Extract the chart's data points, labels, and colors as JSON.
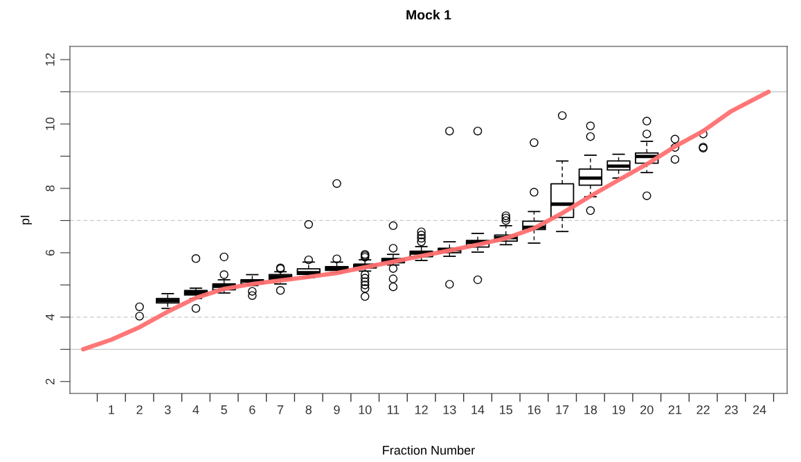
{
  "chart_data": {
    "type": "box",
    "title": "Mock 1",
    "xlabel": "Fraction Number",
    "ylabel": "pI",
    "xlim": [
      -0.47,
      24.98
    ],
    "ylim": [
      1.63,
      12.41
    ],
    "xticks": [
      {
        "value": 0.5,
        "label": null
      },
      {
        "value": 1,
        "label": "1"
      },
      {
        "value": 1.5,
        "label": null
      },
      {
        "value": 2,
        "label": "2"
      },
      {
        "value": 2.5,
        "label": null
      },
      {
        "value": 3,
        "label": "3"
      },
      {
        "value": 3.5,
        "label": null
      },
      {
        "value": 4,
        "label": "4"
      },
      {
        "value": 4.5,
        "label": null
      },
      {
        "value": 5,
        "label": "5"
      },
      {
        "value": 5.5,
        "label": null
      },
      {
        "value": 6,
        "label": "6"
      },
      {
        "value": 6.5,
        "label": null
      },
      {
        "value": 7,
        "label": "7"
      },
      {
        "value": 7.5,
        "label": null
      },
      {
        "value": 8,
        "label": "8"
      },
      {
        "value": 8.5,
        "label": null
      },
      {
        "value": 9,
        "label": "9"
      },
      {
        "value": 9.5,
        "label": null
      },
      {
        "value": 10,
        "label": "10"
      },
      {
        "value": 10.5,
        "label": null
      },
      {
        "value": 11,
        "label": "11"
      },
      {
        "value": 11.5,
        "label": null
      },
      {
        "value": 12,
        "label": "12"
      },
      {
        "value": 12.5,
        "label": null
      },
      {
        "value": 13,
        "label": "13"
      },
      {
        "value": 13.5,
        "label": null
      },
      {
        "value": 14,
        "label": "14"
      },
      {
        "value": 14.5,
        "label": null
      },
      {
        "value": 15,
        "label": "15"
      },
      {
        "value": 15.5,
        "label": null
      },
      {
        "value": 16,
        "label": "16"
      },
      {
        "value": 16.5,
        "label": null
      },
      {
        "value": 17,
        "label": "17"
      },
      {
        "value": 17.5,
        "label": null
      },
      {
        "value": 18,
        "label": "18"
      },
      {
        "value": 18.5,
        "label": null
      },
      {
        "value": 19,
        "label": "19"
      },
      {
        "value": 19.5,
        "label": null
      },
      {
        "value": 20,
        "label": "20"
      },
      {
        "value": 20.5,
        "label": null
      },
      {
        "value": 21,
        "label": "21"
      },
      {
        "value": 21.5,
        "label": null
      },
      {
        "value": 22,
        "label": "22"
      },
      {
        "value": 22.5,
        "label": null
      },
      {
        "value": 23,
        "label": "23"
      },
      {
        "value": 23.5,
        "label": null
      },
      {
        "value": 24,
        "label": "24"
      },
      {
        "value": 24.5,
        "label": null
      }
    ],
    "yticks": [
      2,
      {
        "value": 3,
        "label": null
      },
      4,
      {
        "value": 5,
        "label": null
      },
      6,
      {
        "value": 7,
        "label": null
      },
      8,
      {
        "value": 9,
        "label": null
      },
      10,
      {
        "value": 11,
        "label": null
      },
      12
    ],
    "ref_lines": [
      {
        "axis": "y",
        "value": 3,
        "label": null,
        "color": "#c8c8c8",
        "line_style": "solid"
      },
      {
        "axis": "y",
        "value": 11,
        "label": null,
        "color": "#c8c8c8",
        "line_style": "solid"
      },
      {
        "axis": "y",
        "value": 4,
        "label": null,
        "color": "#c8c8c8",
        "line_style": "dashed"
      },
      {
        "axis": "y",
        "value": 7,
        "label": null,
        "color": "#c8c8c8",
        "line_style": "dashed"
      }
    ],
    "series": [
      {
        "type": "box",
        "color": "#000000",
        "x": [
          3,
          4,
          5,
          6,
          7,
          8,
          9,
          10,
          11,
          12,
          13,
          14,
          15,
          16,
          17,
          18,
          19,
          20
        ],
        "boxes": [
          {
            "low": 4.27,
            "q1": 4.44,
            "median": 4.51,
            "q3": 4.58,
            "high": 4.73
          },
          {
            "low": 4.58,
            "q1": 4.69,
            "median": 4.76,
            "q3": 4.83,
            "high": 4.9,
            "outliers": [
              5.82,
              4.27
            ]
          },
          {
            "low": 4.75,
            "q1": 4.85,
            "median": 4.96,
            "q3": 5.03,
            "high": 5.16,
            "outliers": [
              5.87,
              5.32
            ]
          },
          {
            "low": 4.98,
            "q1": 5.03,
            "median": 5.12,
            "q3": 5.16,
            "high": 5.32,
            "outliers": [
              4.8,
              4.67
            ]
          },
          {
            "low": 5.03,
            "q1": 5.18,
            "median": 5.25,
            "q3": 5.32,
            "high": 5.41,
            "outliers": [
              5.53,
              5.5,
              4.83
            ]
          },
          {
            "low": 5.23,
            "q1": 5.33,
            "median": 5.38,
            "q3": 5.5,
            "high": 5.71,
            "outliers": [
              6.88,
              5.78
            ]
          },
          {
            "low": 5.39,
            "q1": 5.45,
            "median": 5.51,
            "q3": 5.57,
            "high": 5.71,
            "outliers": [
              8.15,
              5.81
            ]
          },
          {
            "low": 5.43,
            "q1": 5.53,
            "median": 5.61,
            "q3": 5.64,
            "high": 5.78,
            "outliers": [
              5.95,
              5.91,
              5.86,
              5.32,
              5.21,
              5.1,
              5.0,
              4.89,
              4.64
            ]
          },
          {
            "low": 5.62,
            "q1": 5.69,
            "median": 5.76,
            "q3": 5.82,
            "high": 5.95,
            "outliers": [
              6.84,
              6.14,
              5.51,
              5.19,
              4.94
            ]
          },
          {
            "low": 5.76,
            "q1": 5.88,
            "median": 5.99,
            "q3": 6.05,
            "high": 6.19,
            "outliers": [
              6.65,
              6.55,
              6.45,
              6.34
            ]
          },
          {
            "low": 5.89,
            "q1": 6.0,
            "median": 6.09,
            "q3": 6.14,
            "high": 6.34,
            "outliers": [
              9.78,
              5.02
            ]
          },
          {
            "low": 6.02,
            "q1": 6.18,
            "median": 6.32,
            "q3": 6.38,
            "high": 6.6,
            "outliers": [
              9.78,
              5.16
            ]
          },
          {
            "low": 6.25,
            "q1": 6.36,
            "median": 6.47,
            "q3": 6.55,
            "high": 6.84,
            "outliers": [
              7.15,
              7.08,
              7.0
            ]
          },
          {
            "low": 6.3,
            "q1": 6.72,
            "median": 6.79,
            "q3": 6.98,
            "high": 7.28,
            "outliers": [
              9.42,
              7.88
            ]
          },
          {
            "low": 6.66,
            "q1": 7.1,
            "median": 7.51,
            "q3": 8.14,
            "high": 8.85,
            "outliers": [
              10.26
            ]
          },
          {
            "low": 7.74,
            "q1": 8.1,
            "median": 8.32,
            "q3": 8.6,
            "high": 9.03,
            "outliers": [
              9.94,
              9.61,
              7.31
            ]
          },
          {
            "low": 8.32,
            "q1": 8.57,
            "median": 8.69,
            "q3": 8.85,
            "high": 9.06
          },
          {
            "low": 8.49,
            "q1": 8.78,
            "median": 8.99,
            "q3": 9.1,
            "high": 9.46,
            "outliers": [
              10.09,
              9.69,
              7.77
            ]
          }
        ]
      },
      {
        "type": "scatter",
        "color": "#000000",
        "marker": "circle",
        "x": [
          2,
          2,
          21,
          21,
          21,
          22,
          22,
          22
        ],
        "values": [
          4.32,
          4.03,
          9.53,
          9.27,
          8.9,
          9.69,
          9.28,
          9.25
        ]
      },
      {
        "type": "line",
        "color": "#ff7070",
        "marker": "none",
        "line_style": "solid",
        "x": [
          0.0,
          1.0,
          1.96,
          3,
          4,
          5,
          6,
          7,
          8,
          9,
          10,
          11,
          12,
          13,
          14,
          15,
          16,
          17,
          18,
          19,
          20,
          21,
          22,
          23,
          24.32
        ],
        "values": [
          3.0,
          3.3,
          3.67,
          4.17,
          4.6,
          4.88,
          5.03,
          5.14,
          5.25,
          5.37,
          5.55,
          5.72,
          5.9,
          6.07,
          6.25,
          6.45,
          6.76,
          7.23,
          7.76,
          8.26,
          8.75,
          9.3,
          9.78,
          10.4,
          11.0
        ]
      }
    ]
  }
}
